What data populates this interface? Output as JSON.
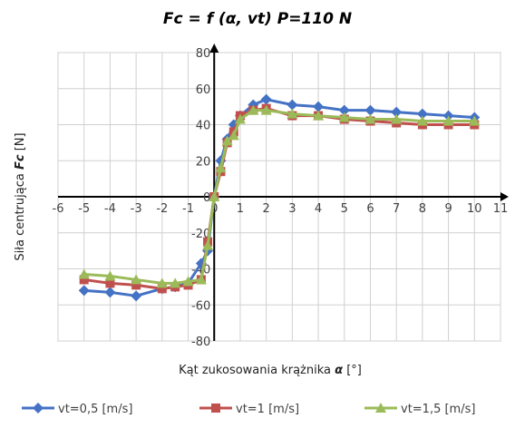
{
  "chart_data": {
    "type": "line",
    "title": "Fc = f (α, vt) P=110 N",
    "xlabel_prefix": "Kąt zukosowania krążnika ",
    "xlabel_symbol": "α",
    "xlabel_unit": " [°]",
    "ylabel_prefix": "Siła centrująca ",
    "ylabel_symbol": "Fc",
    "ylabel_unit": " [N]",
    "xlim": [
      -6,
      11
    ],
    "ylim": [
      -80,
      80
    ],
    "x_ticks": [
      -6,
      -5,
      -4,
      -3,
      -2,
      -1,
      0,
      1,
      2,
      3,
      4,
      5,
      6,
      7,
      8,
      9,
      10,
      11
    ],
    "y_ticks": [
      -80,
      -60,
      -40,
      -20,
      0,
      20,
      40,
      60,
      80
    ],
    "grid": true,
    "legend_position": "bottom",
    "series": [
      {
        "name": "vt=0,5 [m/s]",
        "color": "#4472C4",
        "marker": "diamond",
        "x": [
          -5,
          -4,
          -3,
          -2,
          -1.5,
          -1,
          -0.5,
          -0.25,
          0,
          0.25,
          0.5,
          0.75,
          1,
          1.5,
          2,
          3,
          4,
          5,
          6,
          7,
          8,
          9,
          10
        ],
        "y": [
          -52,
          -53,
          -55,
          -51,
          -50,
          -48,
          -37,
          -30,
          0,
          20,
          32,
          40,
          45,
          51,
          54,
          51,
          50,
          48,
          48,
          47,
          46,
          45,
          44
        ]
      },
      {
        "name": "vt=1 [m/s]",
        "color": "#C0504D",
        "marker": "square",
        "x": [
          -5,
          -4,
          -3,
          -2,
          -1.5,
          -1,
          -0.5,
          -0.25,
          0,
          0.25,
          0.5,
          0.75,
          1,
          1.5,
          2,
          3,
          4,
          5,
          6,
          7,
          8,
          9,
          10
        ],
        "y": [
          -46,
          -48,
          -49,
          -51,
          -50,
          -49,
          -46,
          -25,
          0,
          14,
          30,
          36,
          45,
          48,
          49,
          45,
          45,
          43,
          42,
          41,
          40,
          40,
          40
        ]
      },
      {
        "name": "vt=1,5 [m/s]",
        "color": "#9BBB59",
        "marker": "triangle",
        "x": [
          -5,
          -4,
          -3,
          -2,
          -1.5,
          -1,
          -0.5,
          -0.25,
          0,
          0.25,
          0.5,
          0.75,
          1,
          1.5,
          2,
          3,
          4,
          5,
          6,
          7,
          8,
          9,
          10
        ],
        "y": [
          -43,
          -44,
          -46,
          -48,
          -48,
          -47,
          -46,
          -27,
          0,
          16,
          31,
          34,
          43,
          48,
          48,
          46,
          45,
          44,
          43,
          43,
          42,
          42,
          42
        ]
      }
    ]
  }
}
